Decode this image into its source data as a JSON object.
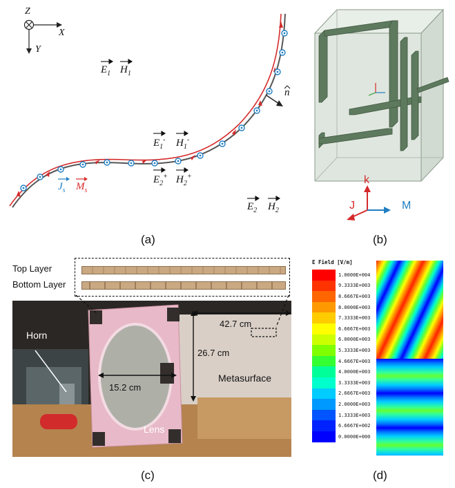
{
  "panel_a": {
    "axis_z": "Z",
    "axis_x": "X",
    "axis_y": "Y",
    "field_E1": "E",
    "field_E1_sub": "1",
    "field_H1": "H",
    "field_H1_sub": "1",
    "field_E1m": "E",
    "field_E1m_sub": "1",
    "field_E1m_sup": "-",
    "field_H1m": "H",
    "field_H1m_sub": "1",
    "field_H1m_sup": "-",
    "field_E2p": "E",
    "field_E2p_sub": "2",
    "field_E2p_sup": "+",
    "field_H2p": "H",
    "field_H2p_sub": "2",
    "field_H2p_sup": "+",
    "field_E2": "E",
    "field_E2_sub": "2",
    "field_H2": "H",
    "field_H2_sub": "2",
    "normal": "n",
    "js": "J",
    "js_sub": "s",
    "ms": "M",
    "ms_sub": "s",
    "caption": "(a)",
    "colors": {
      "ms": "#d42a2a",
      "js": "#1f7ec2",
      "curve": "#333333"
    }
  },
  "panel_b": {
    "label_k": "k",
    "label_j": "J",
    "label_m": "M",
    "caption": "(b)",
    "colors": {
      "k": "#d42a2a",
      "j": "#d42a2a",
      "m": "#1f7ec2",
      "wire": "#5e7a5e"
    }
  },
  "panel_c": {
    "top_layer": "Top Layer",
    "bottom_layer": "Bottom Layer",
    "horn": "Horn",
    "dim_width": "42.7 cm",
    "dim_height": "26.7 cm",
    "dim_lens": "15.2 cm",
    "metasurface": "Metasurface",
    "lens": "Lens",
    "caption": "(c)"
  },
  "panel_d": {
    "legend_title": "E Field [V/m]",
    "legend_values": [
      "1.0000E+004",
      "9.3333E+003",
      "8.6667E+003",
      "8.0000E+003",
      "7.3333E+003",
      "6.6667E+003",
      "6.0000E+003",
      "5.3333E+003",
      "4.6667E+003",
      "4.0000E+003",
      "3.3333E+003",
      "2.6667E+003",
      "2.0000E+003",
      "1.3333E+003",
      "6.6667E+002",
      "0.0000E+000"
    ],
    "legend_colors": [
      "#ff0000",
      "#ff3300",
      "#ff6600",
      "#ff9900",
      "#ffcc00",
      "#ffff00",
      "#ccff00",
      "#80ff00",
      "#33ff33",
      "#00ff99",
      "#00ffcc",
      "#00ccff",
      "#0099ff",
      "#0055ff",
      "#0022ff",
      "#0000ff"
    ],
    "caption": "(d)"
  }
}
